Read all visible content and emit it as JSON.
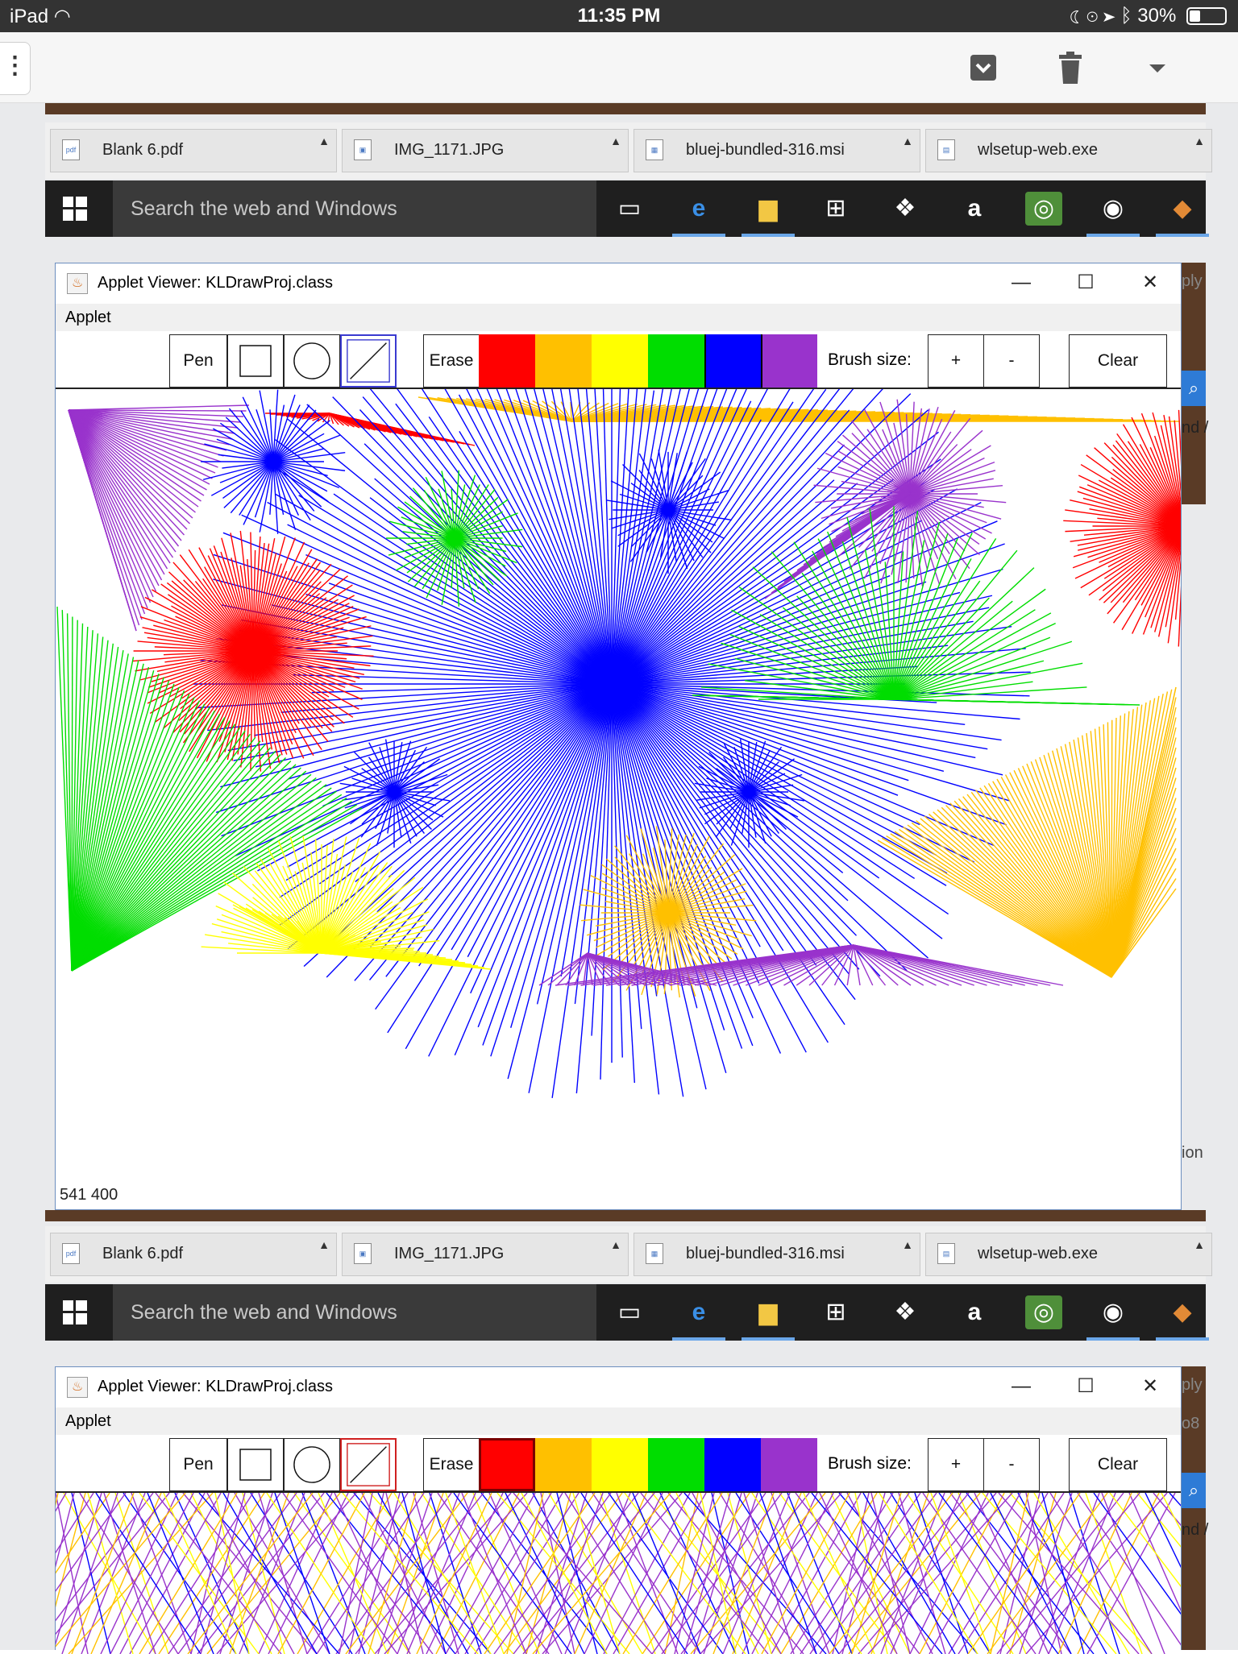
{
  "status": {
    "carrier": "iPad",
    "time": "11:35 PM",
    "battery": "30%",
    "battery_level": 0.3
  },
  "mail_toolbar": {
    "menu_icon": "more-vertical-icon",
    "archive_icon": "archive-icon",
    "trash_icon": "trash-icon",
    "dropdown_icon": "chevron-down-icon"
  },
  "downloads": [
    {
      "name": "Blank 6.pdf",
      "icon": "pdf-icon"
    },
    {
      "name": "IMG_1171.JPG",
      "icon": "image-icon"
    },
    {
      "name": "bluej-bundled-316.msi",
      "icon": "installer-icon"
    },
    {
      "name": "wlsetup-web.exe",
      "icon": "setup-icon"
    }
  ],
  "taskbar": {
    "search_placeholder": "Search the web and Windows",
    "icons": [
      "task-view-icon",
      "edge-icon",
      "file-explorer-icon",
      "store-icon",
      "dropbox-icon",
      "amazon-icon",
      "tripadvisor-icon",
      "groove-icon",
      "app-icon"
    ]
  },
  "applet": {
    "title": "Applet Viewer: KLDrawProj.class",
    "menu": "Applet",
    "tools": {
      "pen": "Pen",
      "erase": "Erase",
      "brush_size": "Brush size:",
      "plus": "+",
      "minus": "-",
      "clear": "Clear"
    },
    "colors": [
      "#ff0000",
      "#ffc000",
      "#ffff00",
      "#00dd00",
      "#0000ff",
      "#9933cc"
    ],
    "accent_line_color": "#3a3ad0",
    "coords": "541 400"
  },
  "applet2": {
    "title": "Applet Viewer: KLDrawProj.class",
    "menu": "Applet",
    "tools": {
      "pen": "Pen",
      "erase": "Erase",
      "brush_size": "Brush size:",
      "plus": "+",
      "minus": "-",
      "clear": "Clear"
    },
    "selected_color": "#ff0000"
  },
  "side_snippets": [
    "ply",
    "nd /",
    "ion",
    "ply",
    "o8",
    "nd /"
  ]
}
